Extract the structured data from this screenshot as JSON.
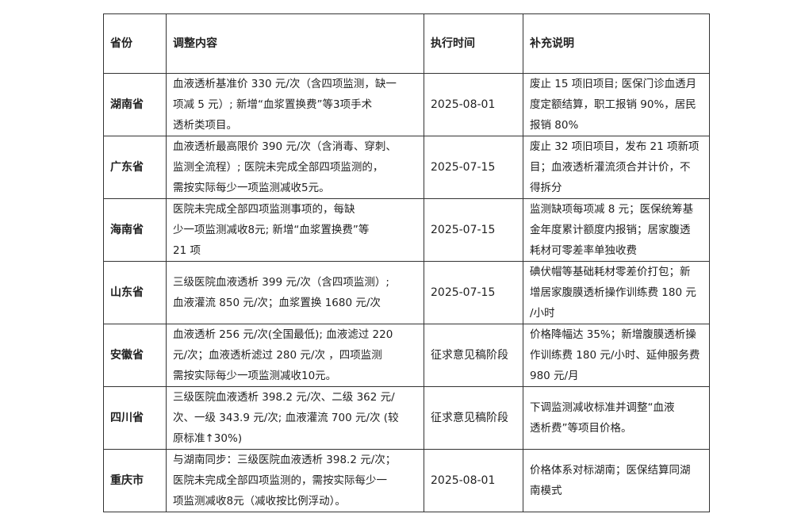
{
  "headers": [
    "省份",
    "调整内容",
    "执行时间",
    "补充说明"
  ],
  "rows": [
    {
      "province": "湖南省",
      "content": [
        "血液透析基准价 330 元/次（含四项监测，缺一",
        "项减 5 元）; 新增“血浆置换费”等3项手术",
        "透析类项目。"
      ],
      "time": "2025-08-01",
      "note": [
        "废止 15 项旧项目; 医保门诊血透月",
        "度定额结算，职工报销 90%，居民",
        "报销 80%"
      ]
    },
    {
      "province": "广东省",
      "content": [
        "血液透析最高限价 390 元/次（含消毒、穿刺、",
        "监测全流程）; 医院未完成全部四项监测的，",
        "需按实际每少一项监测减收5元。"
      ],
      "time": "2025-07-15",
      "note": [
        "废止 32 项旧项目，发布 21 项新项",
        "目；血液透析灌流须合并计价，不",
        "得拆分"
      ]
    },
    {
      "province": "海南省",
      "content": [
        "医院未完成全部四项监测事项的，每缺",
        "少一项监测减收8元; 新增“血浆置换费”等",
        "21 项"
      ],
      "time": "2025-07-15",
      "note": [
        "监测缺项每项减 8 元；医保统筹基",
        "金年度累计额度内报销；居家腹透",
        "耗材可零差率单独收费"
      ]
    },
    {
      "province": "山东省",
      "content": [
        "三级医院血液透析 399 元/次（含四项监测）;",
        "血液灌流 850 元/次；血浆置换 1680 元/次"
      ],
      "time": "2025-07-15",
      "note": [
        "碘伏帽等基础耗材零差价打包；新",
        "增居家腹膜透析操作训练费 180 元",
        "/小时"
      ]
    },
    {
      "province": "安徽省",
      "content": [
        "血液透析 256 元/次(全国最低); 血液滤过 220",
        "元/次；血液透析滤过 280 元/次 ，四项监测",
        "需按实际每少一项监测减收10元。"
      ],
      "time": "征求意见稿阶段",
      "note": [
        "价格降幅达 35%；新增腹膜透析操",
        "作训练费 180 元/小时、延伸服务费",
        "980 元/月"
      ]
    },
    {
      "province": "四川省",
      "content": [
        "三级医院血液透析 398.2 元/次、二级 362 元/",
        "次、一级 343.9 元/次; 血液灌流 700 元/次 (较",
        "原标准↑30%)"
      ],
      "time": "征求意见稿阶段",
      "note": [
        "下调监测减收标准并调整“血液",
        "透析费”等项目价格。"
      ]
    },
    {
      "province": "重庆市",
      "content": [
        "与湖南同步：三级医院血液透析 398.2 元/次；",
        "医院未完成全部四项监测的，需按实际每少一",
        "项监测减收8元（减收按比例浮动）。"
      ],
      "time": "2025-08-01",
      "note": [
        "价格体系对标湖南；医保结算同湖",
        "南模式"
      ]
    }
  ]
}
